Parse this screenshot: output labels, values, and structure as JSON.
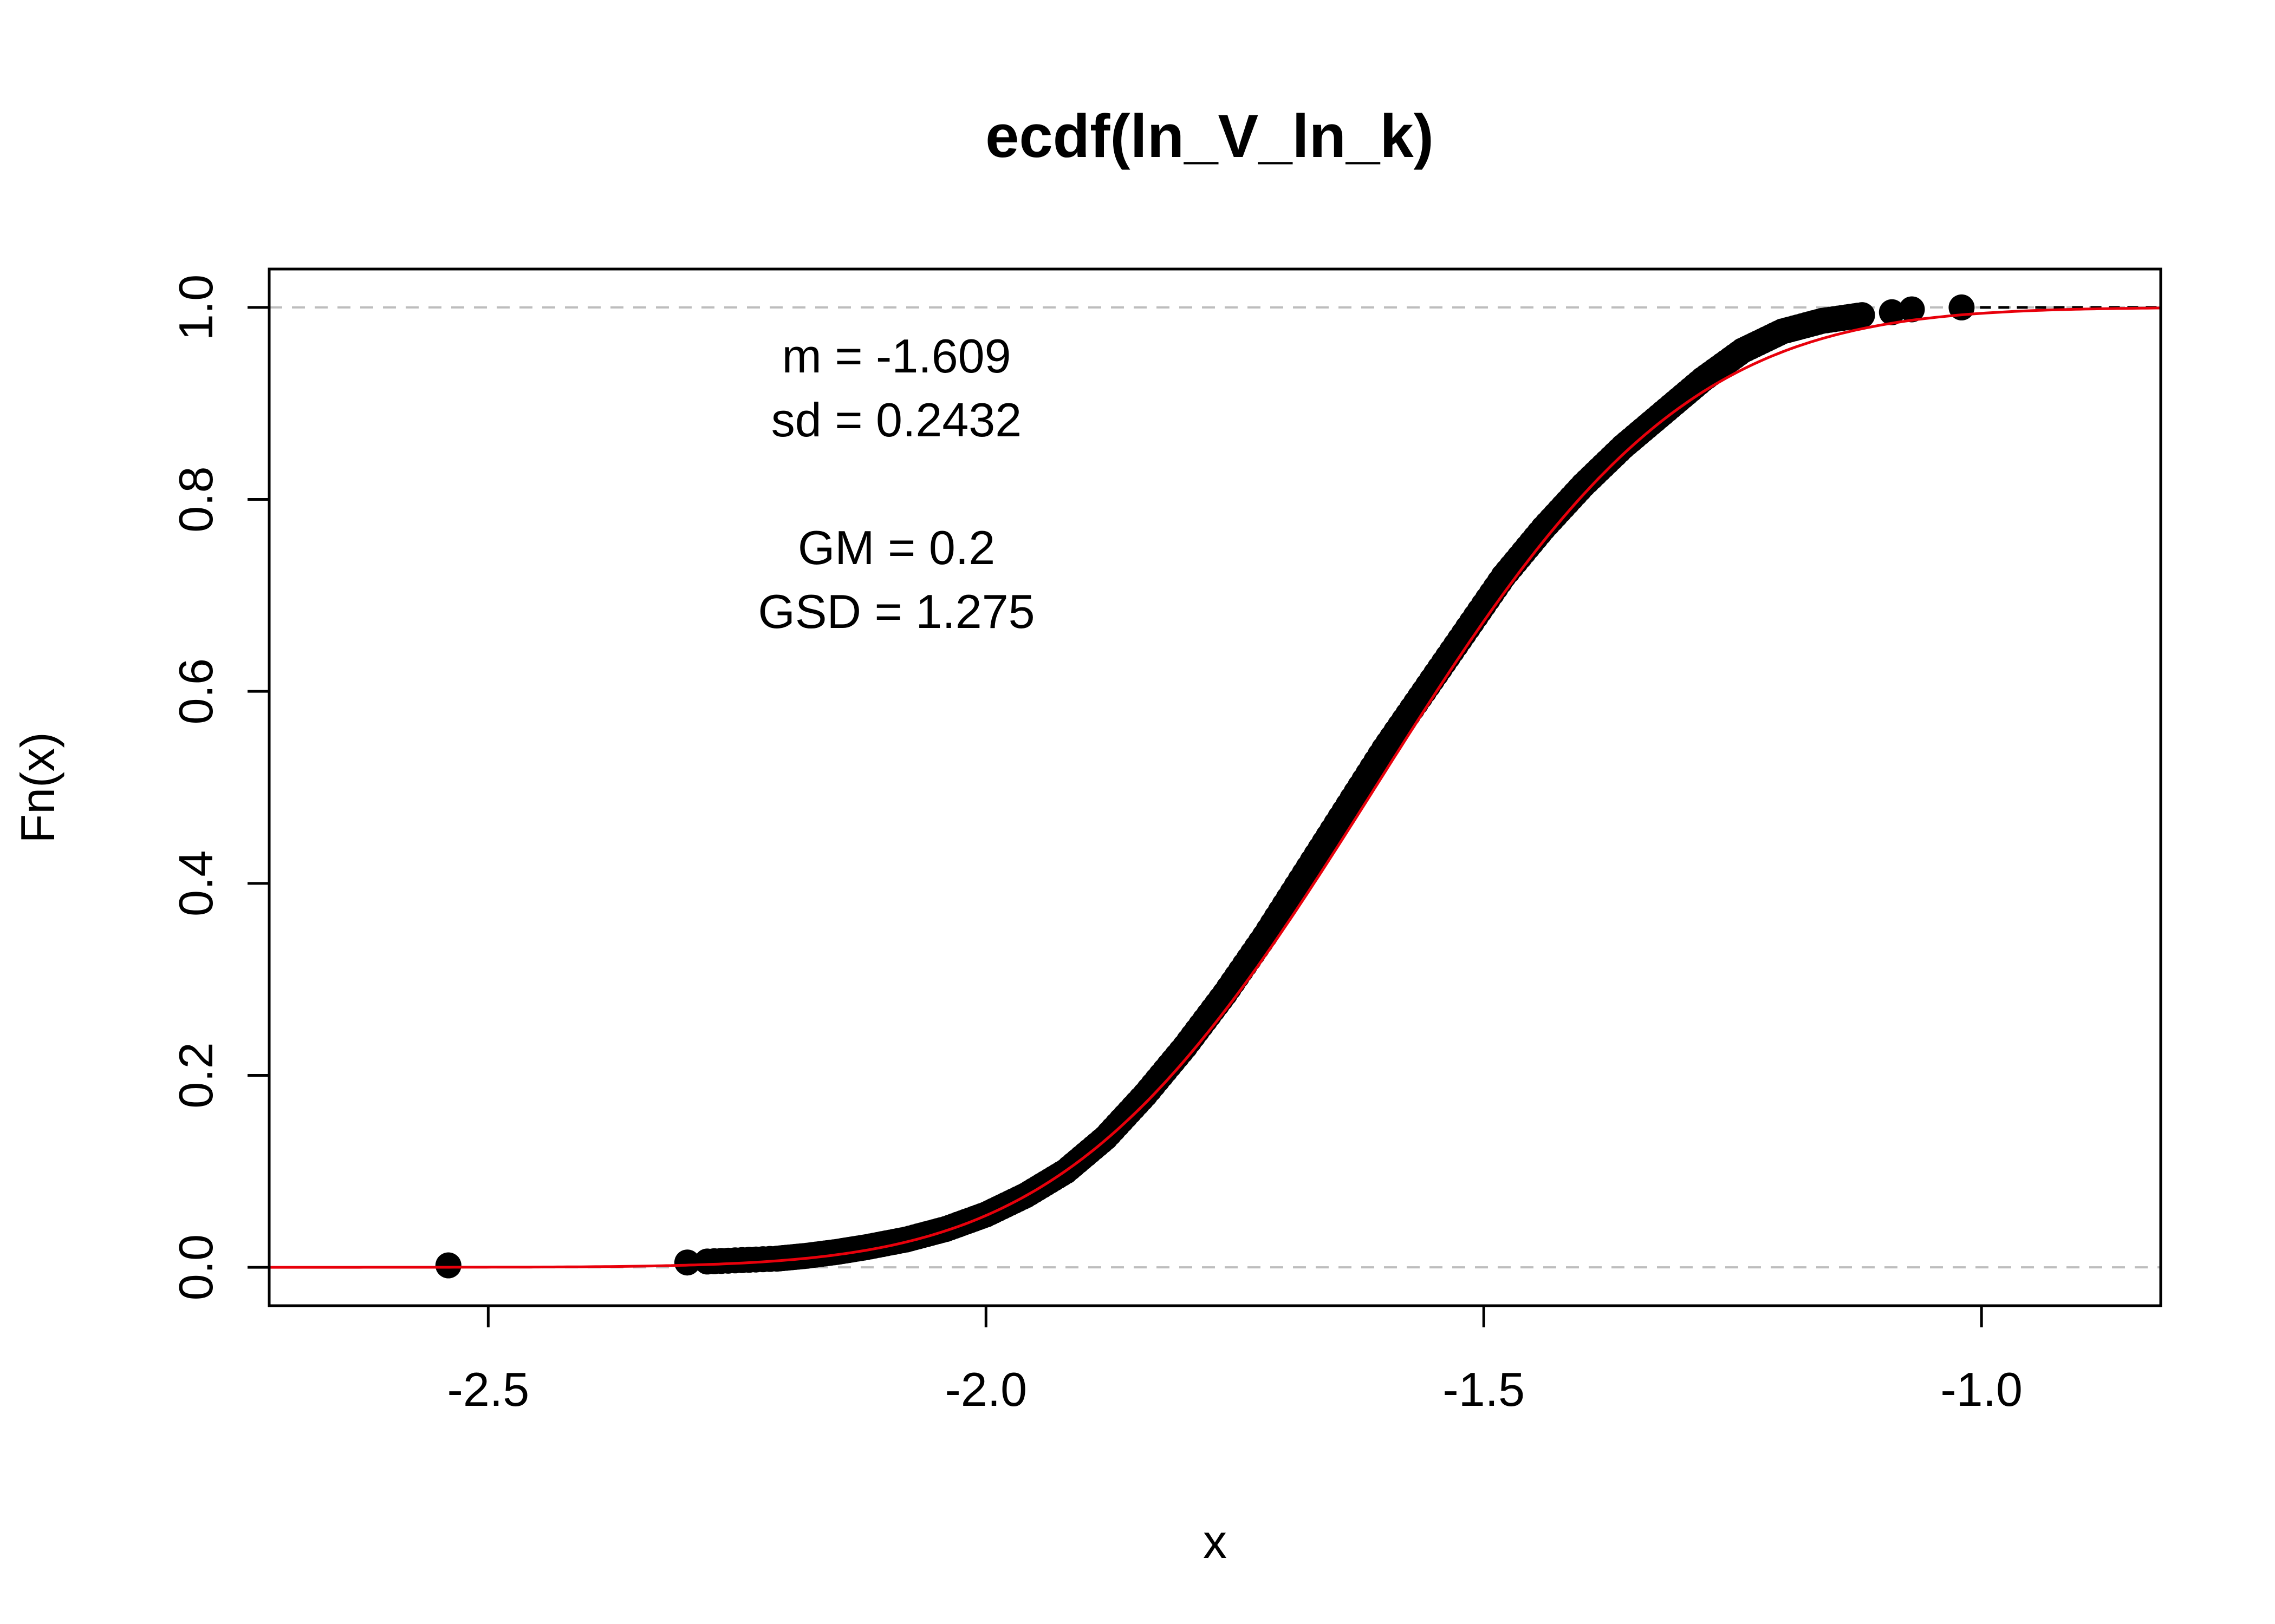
{
  "chart_data": {
    "type": "line",
    "title": "ecdf(ln_V_ln_k)",
    "xlabel": "x",
    "ylabel": "Fn(x)",
    "xlim": [
      -2.72,
      -0.82
    ],
    "ylim": [
      -0.04,
      1.04
    ],
    "x_ticks": [
      -2.5,
      -2.0,
      -1.5,
      -1.0
    ],
    "x_tick_labels": [
      "-2.5",
      "-2.0",
      "-1.5",
      "-1.0"
    ],
    "y_ticks": [
      0.0,
      0.2,
      0.4,
      0.6,
      0.8,
      1.0
    ],
    "y_tick_labels": [
      "0.0",
      "0.2",
      "0.4",
      "0.6",
      "0.8",
      "1.0"
    ],
    "reference_lines_y": [
      0,
      1
    ],
    "annotation_lines": [
      "m = -1.609",
      "sd = 0.2432",
      "",
      "GM = 0.2",
      "GSD = 1.275"
    ],
    "series": [
      {
        "kind": "ecdf-points",
        "color": "#000000",
        "points": [
          [
            -2.54,
            0.002
          ],
          [
            -2.3,
            0.005
          ],
          [
            -2.28,
            0.006
          ],
          [
            -2.21,
            0.009
          ],
          [
            -2.18,
            0.012
          ],
          [
            -2.15,
            0.016
          ],
          [
            -2.12,
            0.021
          ],
          [
            -2.08,
            0.029
          ],
          [
            -2.04,
            0.04
          ],
          [
            -2.0,
            0.055
          ],
          [
            -1.96,
            0.075
          ],
          [
            -1.92,
            0.1
          ],
          [
            -1.88,
            0.135
          ],
          [
            -1.84,
            0.18
          ],
          [
            -1.8,
            0.23
          ],
          [
            -1.76,
            0.285
          ],
          [
            -1.72,
            0.345
          ],
          [
            -1.68,
            0.41
          ],
          [
            -1.64,
            0.475
          ],
          [
            -1.6,
            0.54
          ],
          [
            -1.56,
            0.6
          ],
          [
            -1.52,
            0.66
          ],
          [
            -1.48,
            0.72
          ],
          [
            -1.44,
            0.77
          ],
          [
            -1.4,
            0.815
          ],
          [
            -1.36,
            0.855
          ],
          [
            -1.32,
            0.89
          ],
          [
            -1.28,
            0.925
          ],
          [
            -1.24,
            0.955
          ],
          [
            -1.2,
            0.975
          ],
          [
            -1.16,
            0.986
          ],
          [
            -1.12,
            0.992
          ],
          [
            -1.09,
            0.995
          ],
          [
            -1.07,
            0.998
          ],
          [
            -1.02,
            1.0
          ]
        ]
      },
      {
        "kind": "normal-cdf",
        "color": "#e8000b",
        "mean": -1.609,
        "sd": 0.2432
      }
    ]
  }
}
